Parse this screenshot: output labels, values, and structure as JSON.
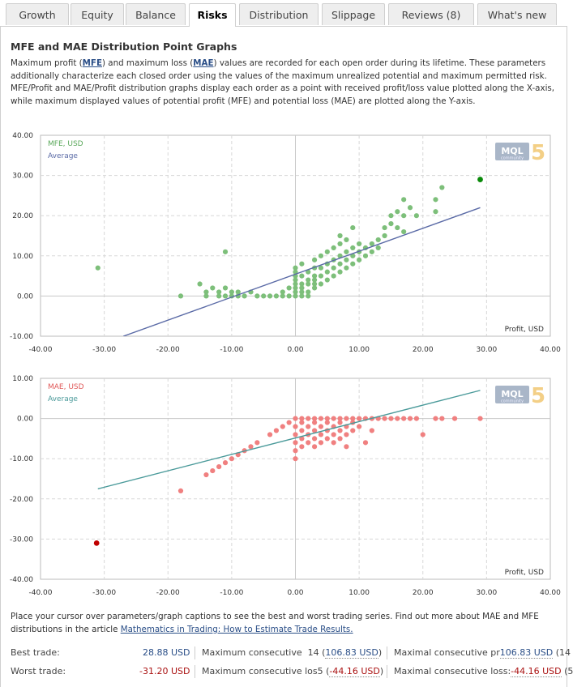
{
  "tabs": [
    {
      "label": "Growth",
      "active": false
    },
    {
      "label": "Equity",
      "active": false
    },
    {
      "label": "Balance",
      "active": false
    },
    {
      "label": "Risks",
      "active": true
    },
    {
      "label": "Distribution",
      "active": false
    },
    {
      "label": "Slippage",
      "active": false
    },
    {
      "label": "Reviews (8)",
      "active": false
    },
    {
      "label": "What's new",
      "active": false
    }
  ],
  "heading": "MFE and MAE Distribution Point Graphs",
  "description": {
    "p1": "Maximum profit (",
    "mfe": "MFE",
    "p2": ") and maximum loss (",
    "mae": "MAE",
    "p3": ") values are recorded for each open order during its lifetime. These parameters additionally characterize each closed order using the values of the maximum unrealized potential and maximum permitted risk. MFE/Profit and MAE/Profit distribution graphs display each order as a point with received profit/loss value plotted along the X-axis, while maximum displayed values of potential profit (MFE) and potential loss (MAE) are plotted along the Y-axis."
  },
  "watermark": {
    "brand": "MQL",
    "sub": "community",
    "version": "5"
  },
  "chart_data": [
    {
      "type": "scatter",
      "legend": [
        "MFE, USD",
        "Average"
      ],
      "xlabel": "Profit, USD",
      "xlim": [
        -40,
        40
      ],
      "ylim": [
        -10,
        40
      ],
      "x_ticks": [
        "-40.00",
        "-30.00",
        "-20.00",
        "-10.00",
        "0.00",
        "10.00",
        "20.00",
        "30.00",
        "40.00"
      ],
      "y_ticks": [
        "40.00",
        "30.00",
        "20.00",
        "10.00",
        "0.00",
        "-10.00"
      ],
      "colors": {
        "points": "#7dbf7a",
        "best": "#0a8a0a",
        "average": "#5a6aa6"
      },
      "average_line": [
        [
          -27,
          -10
        ],
        [
          29,
          22
        ]
      ],
      "best_point": [
        29,
        29
      ],
      "points": [
        [
          -31,
          7
        ],
        [
          -18,
          0
        ],
        [
          -11,
          11
        ],
        [
          -15,
          3
        ],
        [
          -14,
          1
        ],
        [
          -14,
          0
        ],
        [
          -13,
          2
        ],
        [
          -12,
          0
        ],
        [
          -12,
          1
        ],
        [
          -11,
          2
        ],
        [
          -11,
          0
        ],
        [
          -10,
          0
        ],
        [
          -10,
          1
        ],
        [
          -9,
          0
        ],
        [
          -9,
          1
        ],
        [
          -8,
          0
        ],
        [
          -7,
          1
        ],
        [
          -6,
          0
        ],
        [
          -5,
          0
        ],
        [
          -4,
          0
        ],
        [
          -3,
          0
        ],
        [
          -2,
          1
        ],
        [
          -2,
          0
        ],
        [
          -1,
          0
        ],
        [
          -1,
          2
        ],
        [
          0,
          0
        ],
        [
          0,
          1
        ],
        [
          0,
          2
        ],
        [
          0,
          3
        ],
        [
          0,
          4
        ],
        [
          0,
          5
        ],
        [
          0,
          6
        ],
        [
          0,
          7
        ],
        [
          1,
          0
        ],
        [
          1,
          1
        ],
        [
          1,
          2
        ],
        [
          1,
          3
        ],
        [
          1,
          5
        ],
        [
          1,
          8
        ],
        [
          2,
          0
        ],
        [
          2,
          1
        ],
        [
          2,
          3
        ],
        [
          2,
          4
        ],
        [
          2,
          6
        ],
        [
          3,
          2
        ],
        [
          3,
          3
        ],
        [
          3,
          4
        ],
        [
          3,
          5
        ],
        [
          3,
          7
        ],
        [
          3,
          9
        ],
        [
          4,
          3
        ],
        [
          4,
          5
        ],
        [
          4,
          7
        ],
        [
          4,
          10
        ],
        [
          5,
          4
        ],
        [
          5,
          6
        ],
        [
          5,
          8
        ],
        [
          5,
          11
        ],
        [
          6,
          5
        ],
        [
          6,
          7
        ],
        [
          6,
          9
        ],
        [
          6,
          12
        ],
        [
          7,
          6
        ],
        [
          7,
          8
        ],
        [
          7,
          10
        ],
        [
          7,
          13
        ],
        [
          7,
          15
        ],
        [
          8,
          7
        ],
        [
          8,
          9
        ],
        [
          8,
          11
        ],
        [
          8,
          14
        ],
        [
          9,
          8
        ],
        [
          9,
          10
        ],
        [
          9,
          12
        ],
        [
          9,
          17
        ],
        [
          10,
          9
        ],
        [
          10,
          11
        ],
        [
          10,
          13
        ],
        [
          11,
          10
        ],
        [
          11,
          12
        ],
        [
          12,
          11
        ],
        [
          12,
          13
        ],
        [
          13,
          12
        ],
        [
          13,
          14
        ],
        [
          14,
          15
        ],
        [
          14,
          17
        ],
        [
          15,
          18
        ],
        [
          15,
          20
        ],
        [
          16,
          17
        ],
        [
          16,
          21
        ],
        [
          17,
          20
        ],
        [
          17,
          16
        ],
        [
          17,
          24
        ],
        [
          18,
          22
        ],
        [
          19,
          20
        ],
        [
          22,
          24
        ],
        [
          22,
          21
        ],
        [
          23,
          27
        ]
      ]
    },
    {
      "type": "scatter",
      "legend": [
        "MAE, USD",
        "Average"
      ],
      "xlabel": "Profit, USD",
      "xlim": [
        -40,
        40
      ],
      "ylim": [
        -40,
        10
      ],
      "x_ticks": [
        "-40.00",
        "-30.00",
        "-20.00",
        "-10.00",
        "0.00",
        "10.00",
        "20.00",
        "30.00",
        "40.00"
      ],
      "y_ticks": [
        "10.00",
        "0.00",
        "-10.00",
        "-20.00",
        "-30.00",
        "-40.00"
      ],
      "colors": {
        "points": "#f08080",
        "worst": "#c00000",
        "average": "#4a9a9a"
      },
      "average_line": [
        [
          -31,
          -17.5
        ],
        [
          29,
          7
        ]
      ],
      "worst_point": [
        -31.2,
        -31
      ],
      "points": [
        [
          -18,
          -18
        ],
        [
          -14,
          -14
        ],
        [
          -13,
          -13
        ],
        [
          -12,
          -12
        ],
        [
          -11,
          -11
        ],
        [
          -10,
          -10
        ],
        [
          -9,
          -9
        ],
        [
          -8,
          -8
        ],
        [
          -7,
          -7
        ],
        [
          -6,
          -6
        ],
        [
          -4,
          -4
        ],
        [
          -3,
          -3
        ],
        [
          -2,
          -2
        ],
        [
          -1,
          -1
        ],
        [
          0,
          0
        ],
        [
          0,
          -2
        ],
        [
          0,
          -4
        ],
        [
          0,
          -6
        ],
        [
          0,
          -8
        ],
        [
          0,
          -10
        ],
        [
          1,
          0
        ],
        [
          1,
          -1
        ],
        [
          1,
          -3
        ],
        [
          1,
          -5
        ],
        [
          1,
          -7
        ],
        [
          2,
          0
        ],
        [
          2,
          -2
        ],
        [
          2,
          -4
        ],
        [
          2,
          -6
        ],
        [
          3,
          0
        ],
        [
          3,
          -1
        ],
        [
          3,
          -3
        ],
        [
          3,
          -5
        ],
        [
          3,
          -7
        ],
        [
          4,
          0
        ],
        [
          4,
          -2
        ],
        [
          4,
          -4
        ],
        [
          4,
          -6
        ],
        [
          5,
          0
        ],
        [
          5,
          -1
        ],
        [
          5,
          -3
        ],
        [
          5,
          -5
        ],
        [
          6,
          0
        ],
        [
          6,
          -2
        ],
        [
          6,
          -4
        ],
        [
          6,
          -6
        ],
        [
          7,
          0
        ],
        [
          7,
          -1
        ],
        [
          7,
          -3
        ],
        [
          7,
          -5
        ],
        [
          8,
          0
        ],
        [
          8,
          -2
        ],
        [
          8,
          -4
        ],
        [
          8,
          -7
        ],
        [
          9,
          0
        ],
        [
          9,
          -1
        ],
        [
          9,
          -3
        ],
        [
          10,
          0
        ],
        [
          10,
          -2
        ],
        [
          11,
          0
        ],
        [
          11,
          -6
        ],
        [
          12,
          0
        ],
        [
          12,
          -3
        ],
        [
          13,
          0
        ],
        [
          14,
          0
        ],
        [
          15,
          0
        ],
        [
          16,
          0
        ],
        [
          17,
          0
        ],
        [
          18,
          0
        ],
        [
          19,
          0
        ],
        [
          20,
          -4
        ],
        [
          22,
          0
        ],
        [
          23,
          0
        ],
        [
          25,
          0
        ],
        [
          29,
          0
        ]
      ]
    }
  ],
  "note": {
    "text": "Place your cursor over parameters/graph captions to see the best and worst trading series. Find out more about MAE and MFE distributions in the article ",
    "link": "Mathematics in Trading: How to Estimate Trade Results."
  },
  "stats": {
    "best_label": "Best trade:",
    "best_value": "28.88 USD",
    "worst_label": "Worst trade:",
    "worst_value": "-31.20 USD",
    "max_consec_win_label": "Maximum consecutive  14 (",
    "max_consec_win_value": "106.83 USD",
    "max_consec_win_close": ")",
    "max_consec_loss_label": "Maximum consecutive los5 (",
    "max_consec_loss_value": "-44.16 USD",
    "max_consec_loss_close": ")",
    "maximal_consec_profit_label": "Maximal consecutive pr",
    "maximal_consec_profit_value": "106.83 USD",
    "maximal_consec_profit_tail": " (14",
    "maximal_consec_loss_label": "Maximal consecutive loss:",
    "maximal_consec_loss_value": "-44.16 USD",
    "maximal_consec_loss_tail": " (5"
  }
}
